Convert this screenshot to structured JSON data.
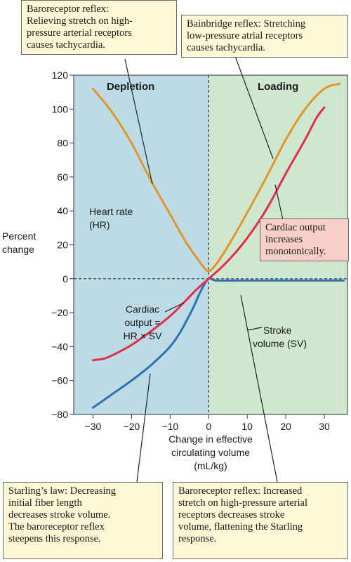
{
  "chart_data": {
    "type": "line",
    "xlabel_lines": [
      "Change in effective",
      "circulating volume",
      "(mL/kg)"
    ],
    "ylabel_lines": [
      "Percent",
      "change"
    ],
    "xlim": [
      -35,
      36
    ],
    "ylim": [
      -80,
      120
    ],
    "xticks": [
      -30,
      -20,
      -10,
      0,
      10,
      20,
      30
    ],
    "xtick_labels": [
      "−30",
      "−20",
      "−10",
      "0",
      "10",
      "20",
      "30"
    ],
    "yticks": [
      -80,
      -60,
      -40,
      -20,
      0,
      20,
      40,
      60,
      80,
      100,
      120
    ],
    "ytick_labels": [
      "−80",
      "−60",
      "−40",
      "−20",
      "0",
      "20",
      "40",
      "60",
      "80",
      "100",
      "120"
    ],
    "regions": [
      {
        "label": "Depletion",
        "x_range": [
          -35,
          0
        ],
        "color": "#bcdbe4"
      },
      {
        "label": "Loading",
        "x_range": [
          0,
          36
        ],
        "color": "#cfe6cf"
      }
    ],
    "series": [
      {
        "key": "heart_rate",
        "color": "#e0962a",
        "label_lines": [
          "Heart rate",
          "(HR)"
        ],
        "points": [
          [
            -30,
            112
          ],
          [
            -25,
            98
          ],
          [
            -20,
            80
          ],
          [
            -15,
            58
          ],
          [
            -10,
            38
          ],
          [
            -6,
            22
          ],
          [
            -3,
            12
          ],
          [
            -1,
            6
          ],
          [
            0,
            4.5
          ],
          [
            1,
            6
          ],
          [
            3,
            12
          ],
          [
            6,
            23
          ],
          [
            10,
            39
          ],
          [
            15,
            60
          ],
          [
            20,
            82
          ],
          [
            25,
            100
          ],
          [
            30,
            112
          ],
          [
            34,
            115
          ]
        ]
      },
      {
        "key": "cardiac_output",
        "color": "#e32d4b",
        "label_lines": [
          "Cardiac",
          "output =",
          "HR × SV"
        ],
        "points": [
          [
            -30,
            -48
          ],
          [
            -27,
            -47
          ],
          [
            -24,
            -44
          ],
          [
            -20,
            -39
          ],
          [
            -15,
            -31
          ],
          [
            -10,
            -22
          ],
          [
            -6,
            -13
          ],
          [
            -3,
            -6
          ],
          [
            0,
            0
          ],
          [
            3,
            6
          ],
          [
            6,
            13
          ],
          [
            10,
            24
          ],
          [
            15,
            41
          ],
          [
            20,
            62
          ],
          [
            25,
            82
          ],
          [
            28,
            95
          ],
          [
            30,
            101
          ]
        ]
      },
      {
        "key": "stroke_volume",
        "color": "#2f6fb2",
        "label_lines": [
          "Stroke",
          "volume (SV)"
        ],
        "points": [
          [
            -30,
            -76
          ],
          [
            -25,
            -68
          ],
          [
            -20,
            -60
          ],
          [
            -15,
            -51
          ],
          [
            -10,
            -40
          ],
          [
            -7,
            -30
          ],
          [
            -4,
            -17
          ],
          [
            -2,
            -7
          ],
          [
            0,
            0
          ],
          [
            2,
            -1
          ],
          [
            10,
            -1
          ],
          [
            20,
            -1
          ],
          [
            30,
            -1
          ],
          [
            35,
            -1
          ]
        ]
      }
    ],
    "annotations": {
      "baroreceptor_top": [
        "Baroreceptor reflex:",
        "Relieving stretch on high-",
        "pressure arterial receptors",
        "causes tachycardia."
      ],
      "bainbridge": [
        "Bainbridge reflex: Stretching",
        "low-pressure atrial receptors",
        "causes tachycardia."
      ],
      "cardiac_output_note": [
        "Cardiac output",
        "increases",
        "monotonically."
      ],
      "starling": [
        "Starling’s law: Decreasing",
        "initial fiber length",
        "decreases stroke volume.",
        "The baroreceptor reflex",
        "steepens this response."
      ],
      "baroreceptor_bottom": [
        "Baroreceptor reflex: Increased",
        "stretch on high-pressure arterial",
        "receptors decreases stroke",
        "volume, flattening the Starling",
        "response."
      ]
    }
  }
}
